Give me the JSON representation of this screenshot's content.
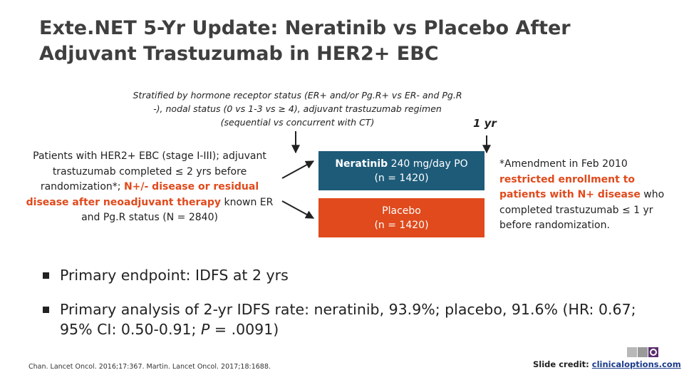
{
  "title": "Exte.NET 5-Yr Update: Neratinib vs Placebo After Adjuvant Trastuzumab in HER2+ EBC",
  "stratification": "Stratified by hormone receptor status (ER+ and/or Pg.R+ vs ER- and Pg.R -), nodal status (0 vs 1-3 vs ≥ 4), adjuvant trastuzumab regimen (sequential vs concurrent with CT)",
  "timepoint": "1 yr",
  "patients": {
    "before": "Patients with HER2+ EBC (stage I-III); adjuvant trastuzumab completed ≤ 2 yrs before randomization*; ",
    "highlight": "N+/- disease or residual disease after neoadjuvant therapy",
    "after": " known ER and Pg.R status (N = 2840)"
  },
  "arms": [
    {
      "name": "Neratinib",
      "detail": " 240 mg/day PO",
      "n": "(n = 1420)"
    },
    {
      "name": "Placebo",
      "n": "(n = 1420)"
    }
  ],
  "amendment": {
    "before": "*Amendment in Feb 2010 ",
    "highlight": "restricted enrollment to patients with N+ disease",
    "after": " who completed trastuzumab ≤ 1 yr before randomization."
  },
  "bullets": [
    {
      "text": "Primary endpoint: IDFS at 2 yrs"
    },
    {
      "text": "Primary analysis of 2-yr IDFS rate: neratinib, 93.9%; placebo, 91.6% (HR: 0.67; 95% CI: 0.50-0.91; ",
      "italic": "P",
      "after": " = .0091)"
    }
  ],
  "footer": {
    "references": "Chan. Lancet Oncol. 2016;17:367. Martin. Lancet Oncol. 2017;18:1688.",
    "credit_label": "Slide credit: ",
    "credit_link": "clinicaloptions.com"
  }
}
